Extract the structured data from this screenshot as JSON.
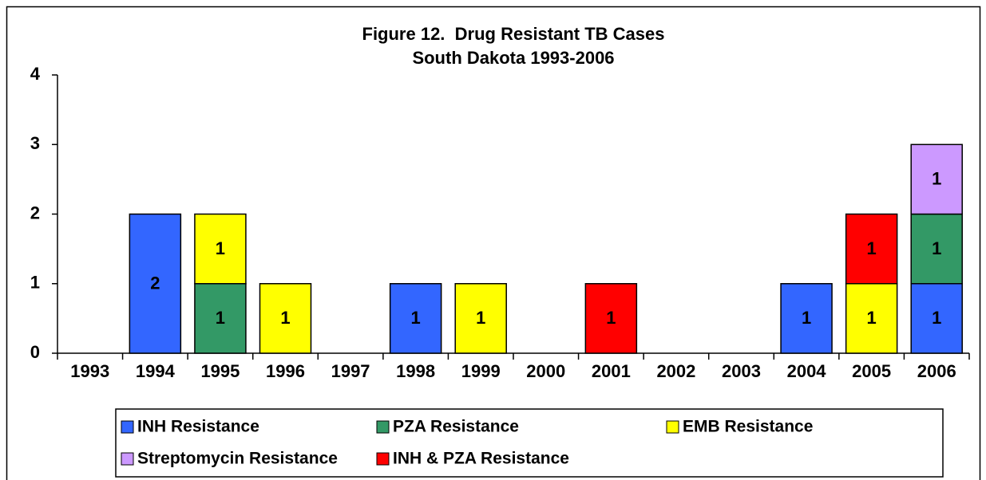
{
  "chart_data": {
    "type": "stacked_bar",
    "title": "Figure 12.  Drug Resistant TB Cases",
    "subtitle": "South Dakota 1993-2006",
    "categories": [
      "1993",
      "1994",
      "1995",
      "1996",
      "1997",
      "1998",
      "1999",
      "2000",
      "2001",
      "2002",
      "2003",
      "2004",
      "2005",
      "2006"
    ],
    "series": [
      {
        "name": "INH Resistance",
        "color": "#3366ff",
        "values": [
          null,
          2,
          null,
          null,
          null,
          1,
          null,
          null,
          null,
          null,
          null,
          1,
          null,
          1
        ]
      },
      {
        "name": "PZA Resistance",
        "color": "#339966",
        "values": [
          null,
          null,
          1,
          null,
          null,
          null,
          null,
          null,
          null,
          null,
          null,
          null,
          null,
          1
        ]
      },
      {
        "name": "EMB Resistance",
        "color": "#ffff00",
        "values": [
          null,
          null,
          1,
          1,
          null,
          null,
          1,
          null,
          null,
          null,
          null,
          null,
          1,
          null
        ]
      },
      {
        "name": "Streptomycin Resistance",
        "color": "#cc99ff",
        "values": [
          null,
          null,
          null,
          null,
          null,
          null,
          null,
          null,
          null,
          null,
          null,
          null,
          null,
          1
        ]
      },
      {
        "name": "INH & PZA Resistance",
        "color": "#ff0000",
        "values": [
          null,
          null,
          null,
          null,
          null,
          null,
          null,
          null,
          1,
          null,
          null,
          null,
          1,
          null
        ]
      }
    ],
    "ylim": [
      0,
      4
    ],
    "yticks": [
      0,
      1,
      2,
      3,
      4
    ]
  }
}
